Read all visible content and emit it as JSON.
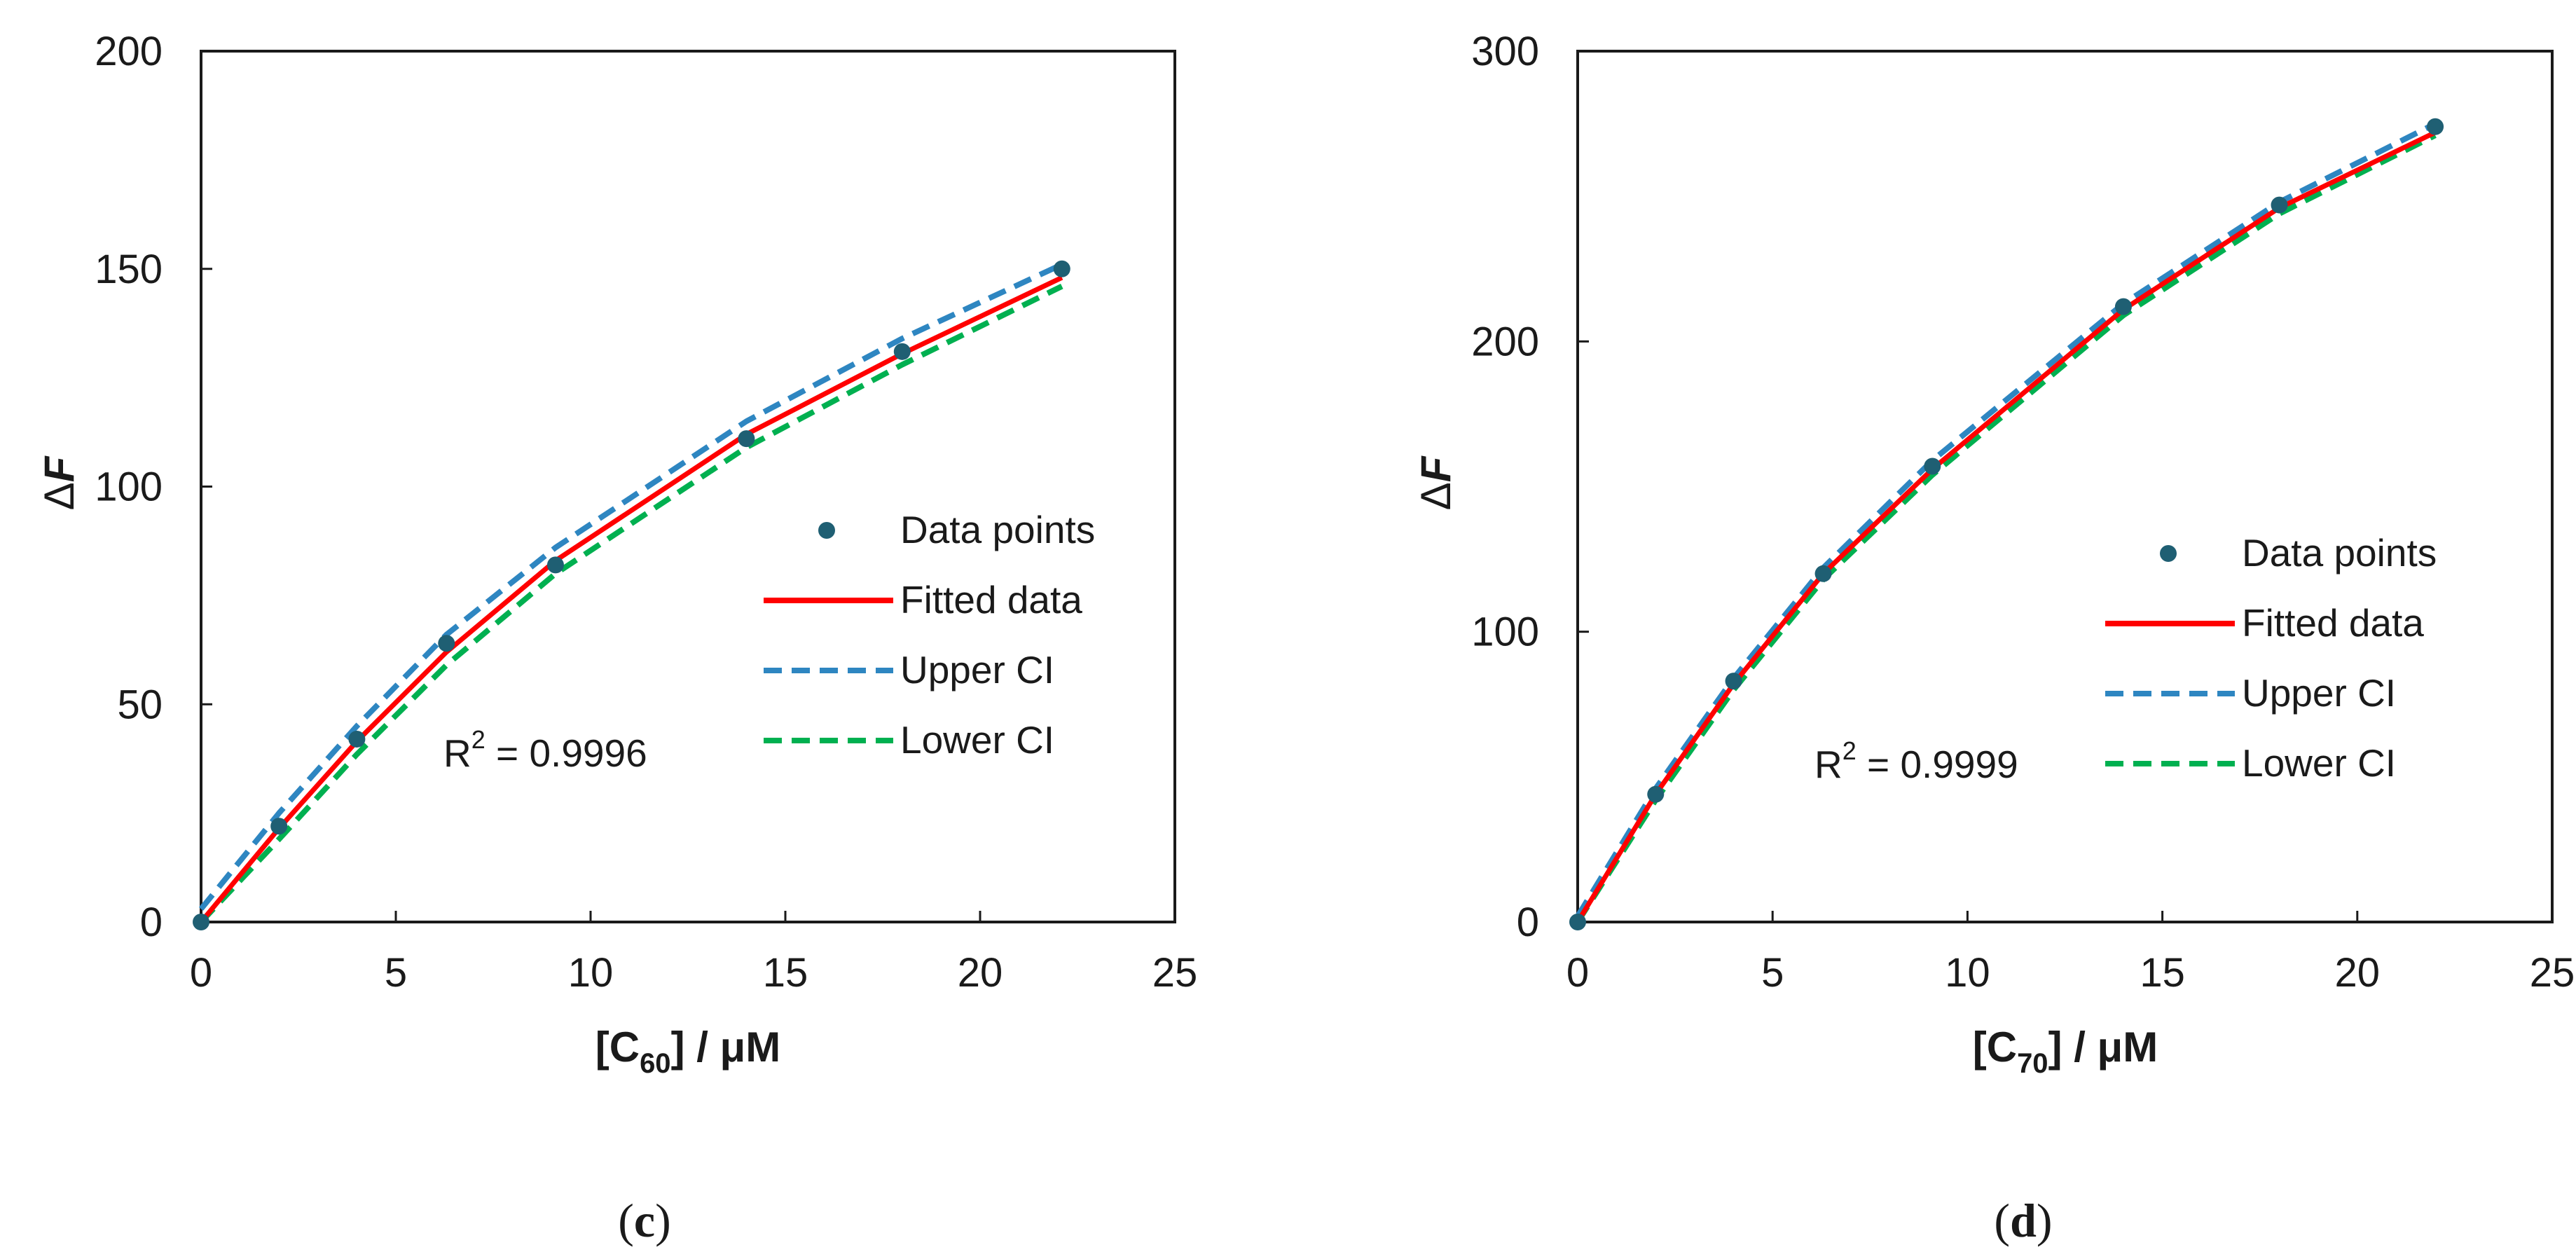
{
  "chart_data": [
    {
      "type": "line",
      "panel_label": "c",
      "xlabel": "[C60] / μM",
      "xlabel_parts": [
        "[C",
        "60",
        "] / μM"
      ],
      "ylabel": "ΔF",
      "ylabel_parts": [
        "Δ",
        "F"
      ],
      "xlim": [
        0,
        25
      ],
      "ylim": [
        0,
        200
      ],
      "xticks": [
        0,
        5,
        10,
        15,
        20,
        25
      ],
      "yticks": [
        0,
        50,
        100,
        150,
        200
      ],
      "annotation": "R2 = 0.9996",
      "annotation_parts": [
        "R",
        "2",
        " = 0.9996"
      ],
      "legend_position": "right",
      "series": [
        {
          "name": "Data points",
          "kind": "scatter",
          "color": "#1f5f73",
          "x": [
            0,
            2,
            4,
            6.3,
            9.1,
            14,
            18,
            22.1
          ],
          "y": [
            0,
            22,
            42,
            64,
            82,
            111,
            131,
            150
          ]
        },
        {
          "name": "Fitted data",
          "kind": "line",
          "color": "#ff0000",
          "dash": "none",
          "x": [
            0,
            2,
            4,
            6.3,
            9.1,
            14,
            18,
            22.1
          ],
          "y": [
            0,
            21.5,
            41.5,
            62,
            83,
            112,
            130.5,
            148
          ]
        },
        {
          "name": "Upper CI",
          "kind": "line",
          "color": "#2e86c1",
          "dash": "dashed",
          "x": [
            0,
            2,
            4,
            6.3,
            9.1,
            14,
            18,
            22.1
          ],
          "y": [
            3,
            25,
            45,
            66,
            86,
            115,
            134,
            151
          ]
        },
        {
          "name": "Lower CI",
          "kind": "line",
          "color": "#00b050",
          "dash": "dashed",
          "x": [
            0,
            2,
            4,
            6.3,
            9.1,
            14,
            18,
            22.1
          ],
          "y": [
            0,
            19,
            38.5,
            59,
            80,
            109,
            128,
            146
          ]
        }
      ]
    },
    {
      "type": "line",
      "panel_label": "d",
      "xlabel": "[C70] / μM",
      "xlabel_parts": [
        "[C",
        "70",
        "] / μM"
      ],
      "ylabel": "ΔF",
      "ylabel_parts": [
        "Δ",
        "F"
      ],
      "xlim": [
        0,
        25
      ],
      "ylim": [
        0,
        300
      ],
      "xticks": [
        0,
        5,
        10,
        15,
        20,
        25
      ],
      "yticks": [
        0,
        100,
        200,
        300
      ],
      "annotation": "R2 = 0.9999",
      "annotation_parts": [
        "R",
        "2",
        " = 0.9999"
      ],
      "legend_position": "right",
      "series": [
        {
          "name": "Data points",
          "kind": "scatter",
          "color": "#1f5f73",
          "x": [
            0,
            2,
            4,
            6.3,
            9.1,
            14,
            18,
            22
          ],
          "y": [
            0,
            44,
            83,
            120,
            157,
            212,
            247,
            274
          ]
        },
        {
          "name": "Fitted data",
          "kind": "line",
          "color": "#ff0000",
          "dash": "none",
          "x": [
            0,
            2,
            4,
            6.3,
            9.1,
            14,
            18,
            22
          ],
          "y": [
            0,
            44,
            82,
            120,
            156,
            211,
            246,
            272
          ]
        },
        {
          "name": "Upper CI",
          "kind": "line",
          "color": "#2e86c1",
          "dash": "dashed",
          "x": [
            0,
            2,
            4,
            6.3,
            9.1,
            14,
            18,
            22
          ],
          "y": [
            2,
            46,
            84,
            122,
            159,
            213,
            248,
            275
          ]
        },
        {
          "name": "Lower CI",
          "kind": "line",
          "color": "#00b050",
          "dash": "dashed",
          "x": [
            0,
            2,
            4,
            6.3,
            9.1,
            14,
            18,
            22
          ],
          "y": [
            0,
            42,
            80,
            118,
            154,
            209,
            244,
            271
          ]
        }
      ]
    }
  ]
}
